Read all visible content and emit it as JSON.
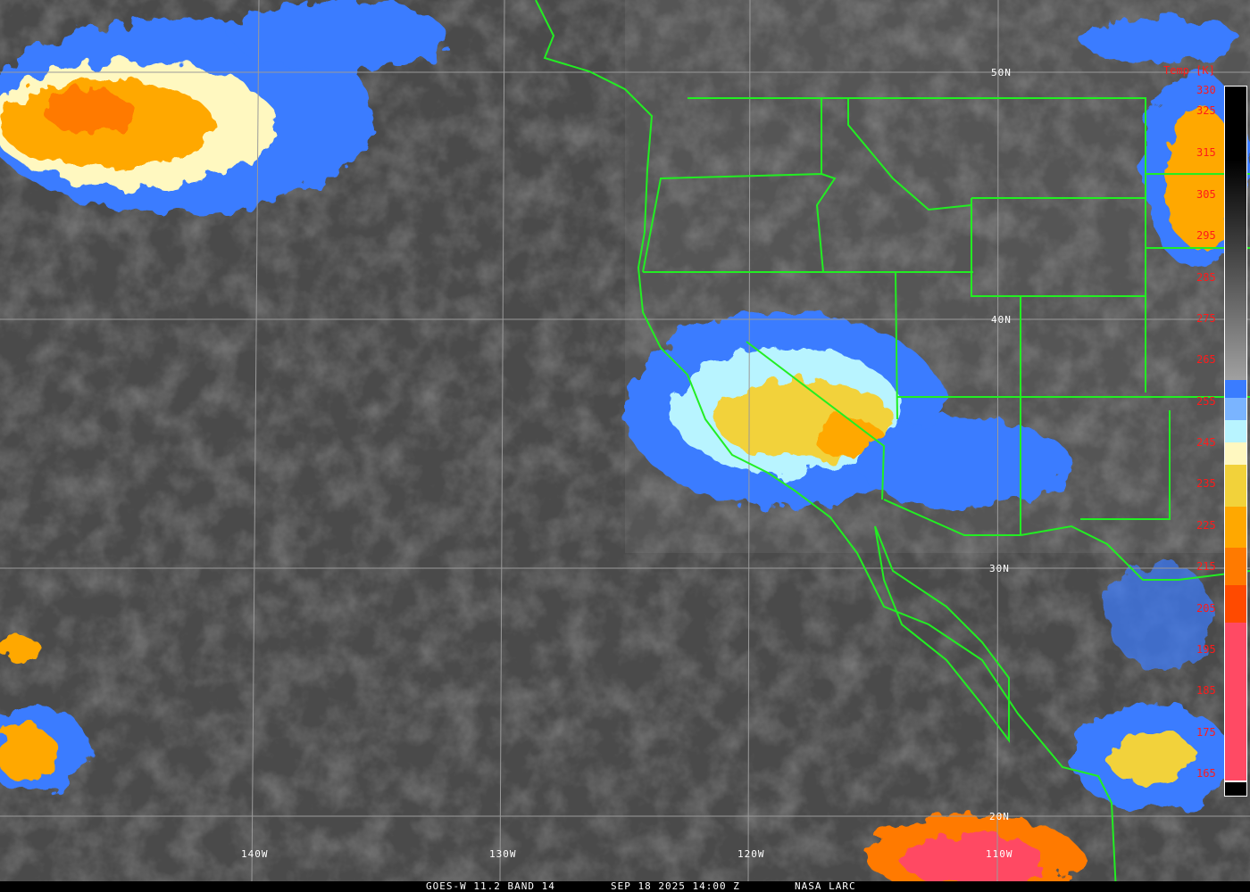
{
  "map": {
    "latitude_labels": [
      "50N",
      "40N",
      "30N",
      "20N"
    ],
    "longitude_labels": [
      "140W",
      "130W",
      "120W",
      "110W"
    ],
    "border_color": "#22ee22",
    "grid_color": "#9a9a9a"
  },
  "colorbar": {
    "title": "Temp [K]",
    "ticks": [
      "330",
      "325",
      "315",
      "305",
      "295",
      "285",
      "275",
      "265",
      "255",
      "245",
      "235",
      "225",
      "215",
      "205",
      "195",
      "185",
      "175",
      "165"
    ],
    "colors": [
      "#000000",
      "#808080",
      "#a0a0a0",
      "#3a7cff",
      "#7ab4ff",
      "#b8f4ff",
      "#fff8c0",
      "#f2d23a",
      "#ffa800",
      "#ff7a00",
      "#ff4a00",
      "#ff4a64"
    ]
  },
  "caption": {
    "satellite": "GOES-W 11.2 BAND 14",
    "datetime": "SEP 18 2025 14:00 Z",
    "source": "NASA LARC"
  }
}
